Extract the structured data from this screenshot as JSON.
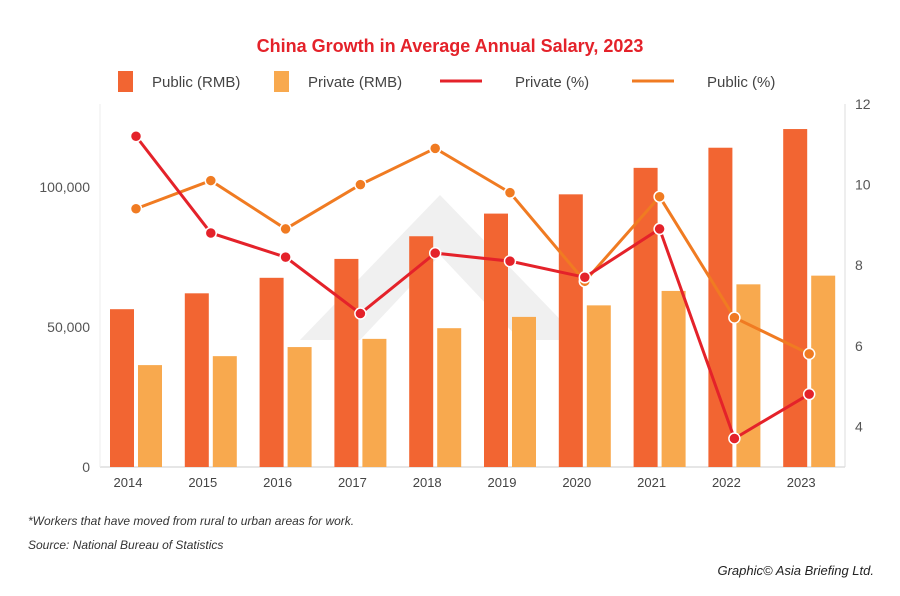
{
  "chart_data": {
    "type": "bar+line",
    "title": "China Growth in Average Annual Salary, 2023",
    "categories": [
      "2014",
      "2015",
      "2016",
      "2017",
      "2018",
      "2019",
      "2020",
      "2021",
      "2022",
      "2023"
    ],
    "series": [
      {
        "name": "Public (RMB)",
        "type": "bar",
        "axis": "left",
        "color": "#f26532",
        "values": [
          56360,
          62029,
          67569,
          74318,
          82413,
          90501,
          97379,
          106837,
          114029,
          120698
        ]
      },
      {
        "name": "Private (RMB)",
        "type": "bar",
        "axis": "left",
        "color": "#f8a94e",
        "values": [
          36390,
          39589,
          42833,
          45761,
          49575,
          53604,
          57727,
          62884,
          65237,
          68340
        ]
      },
      {
        "name": "Private (%)",
        "type": "line",
        "axis": "right",
        "color": "#e4222a",
        "values": [
          11.2,
          8.8,
          8.2,
          6.8,
          8.3,
          8.1,
          7.7,
          8.9,
          3.7,
          4.8
        ]
      },
      {
        "name": "Public (%)",
        "type": "line",
        "axis": "right",
        "color": "#f07b22",
        "values": [
          9.4,
          10.1,
          8.9,
          10.0,
          10.9,
          9.8,
          7.6,
          9.7,
          6.7,
          5.8
        ]
      }
    ],
    "left_axis": {
      "ticks": [
        "0",
        "50,000",
        "100,000"
      ],
      "tick_values": [
        0,
        50000,
        100000
      ],
      "range": [
        0,
        130000
      ]
    },
    "right_axis": {
      "ticks": [
        "4",
        "6",
        "8",
        "10",
        "12"
      ],
      "tick_values": [
        4,
        6,
        8,
        10,
        12
      ],
      "range": [
        3,
        12
      ]
    },
    "legend": "top",
    "grid": false
  },
  "footnote": "*Workers that have moved from rural to urban areas for work.",
  "source": "Source: National Bureau of Statistics",
  "credit": "Graphic© Asia Briefing Ltd.",
  "colors": {
    "title": "#e4222a"
  }
}
